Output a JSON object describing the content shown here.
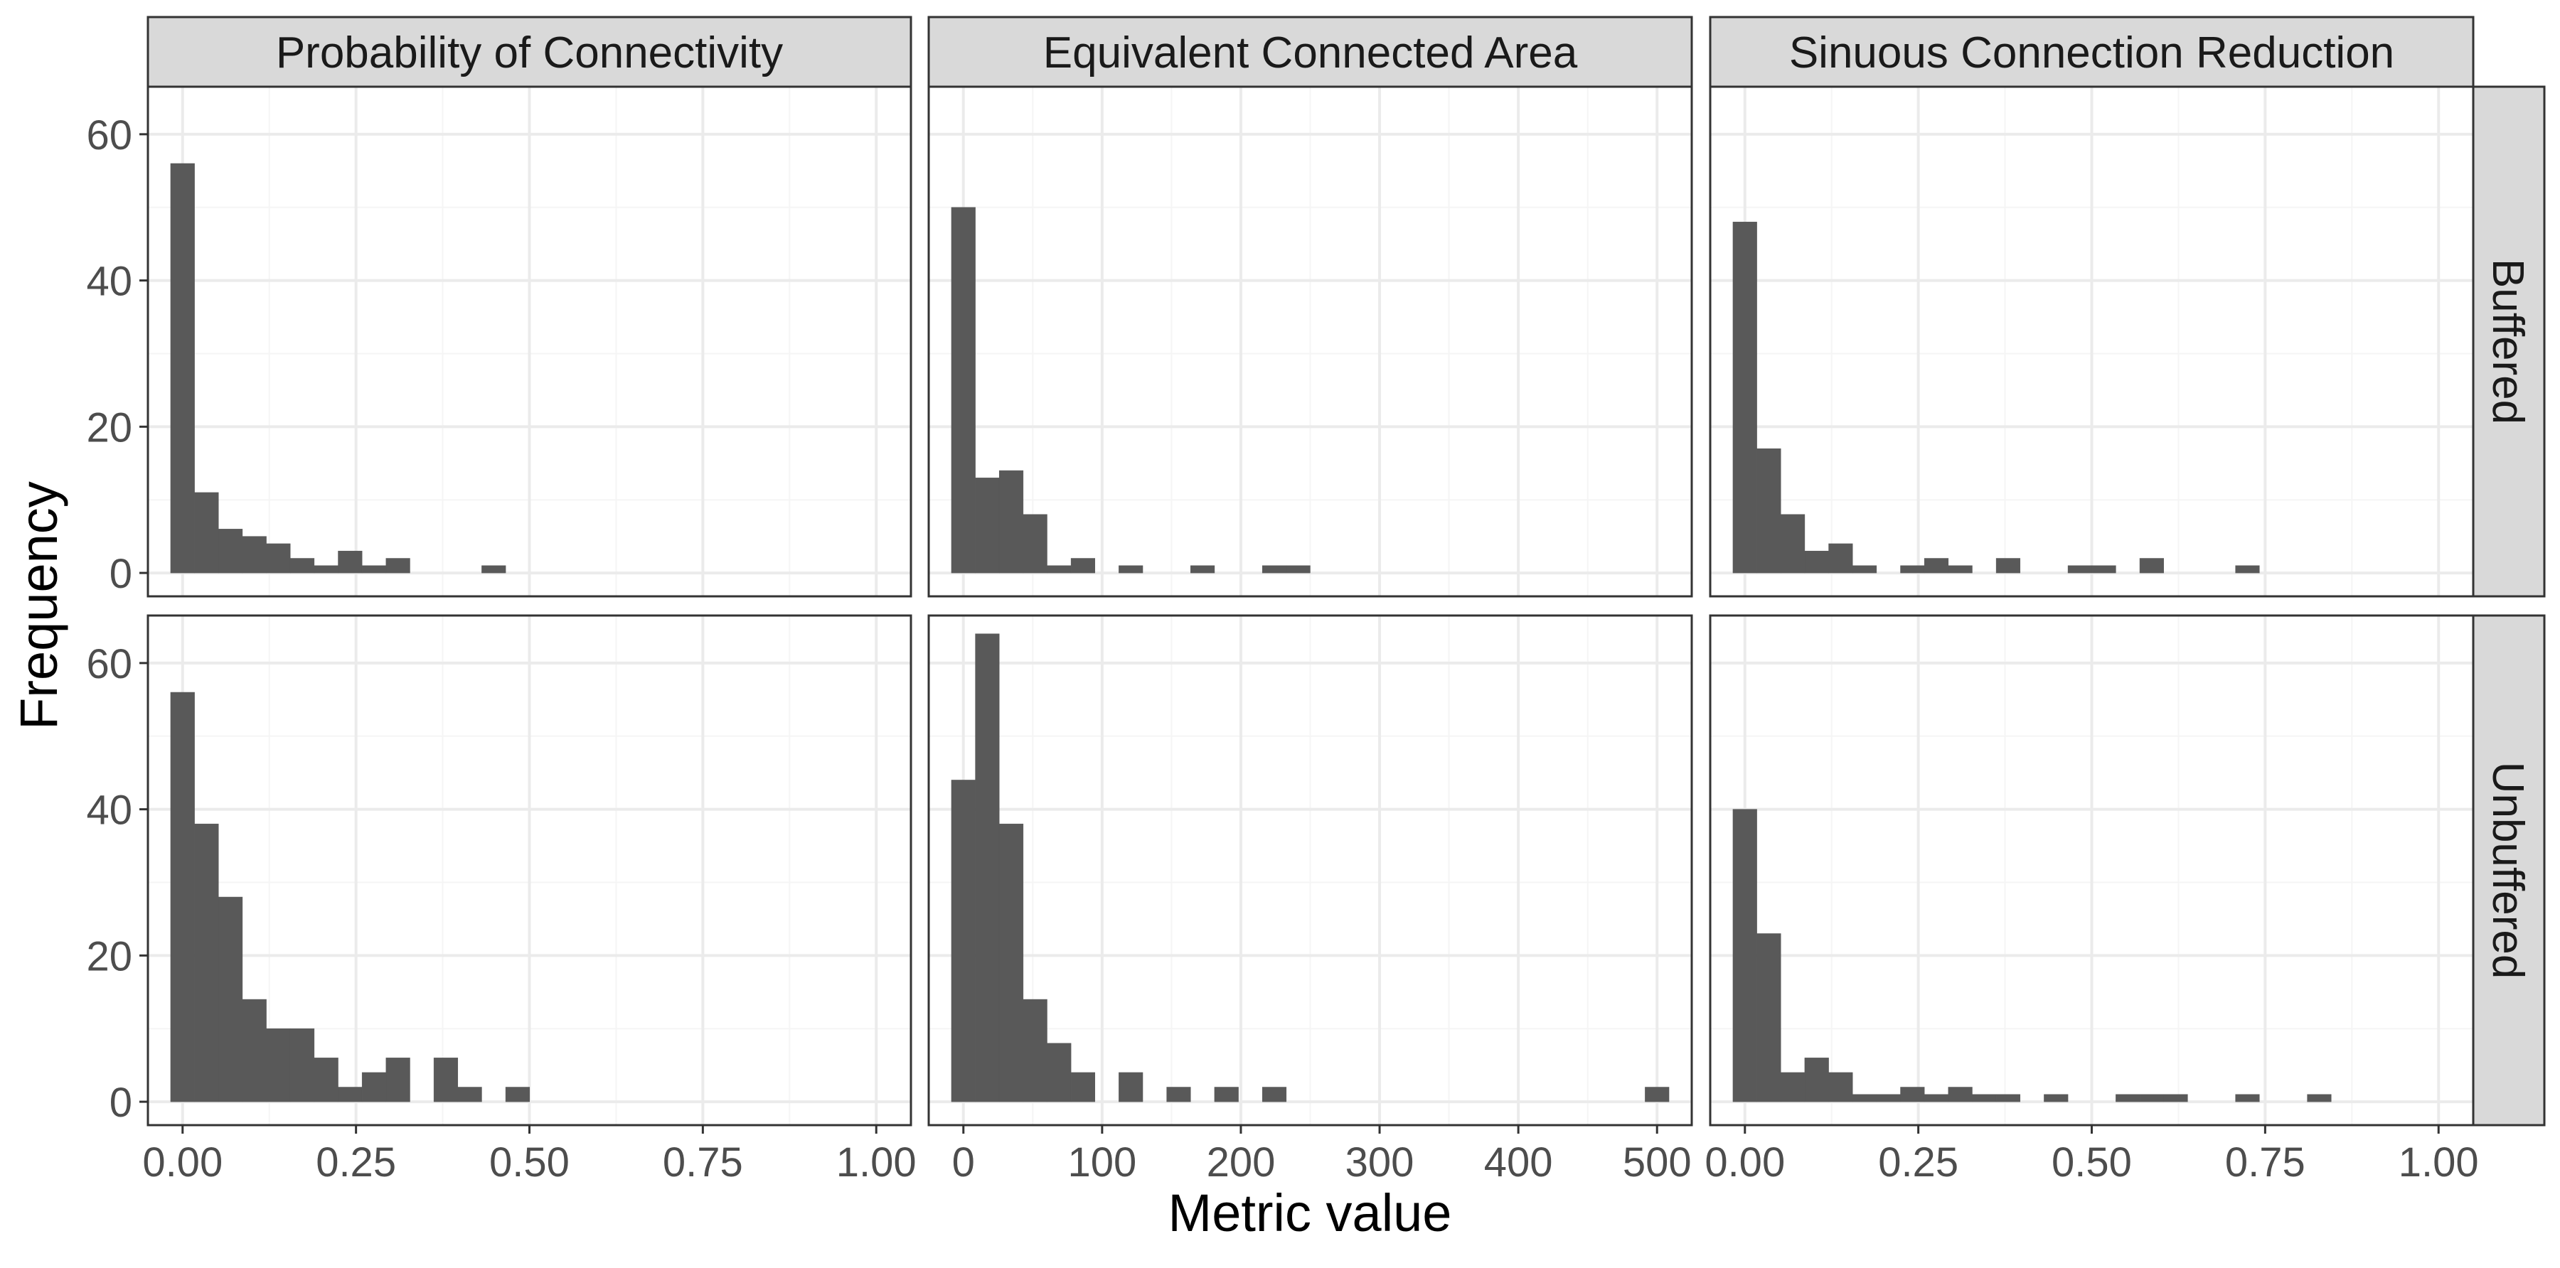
{
  "chart_data": {
    "type": "bar",
    "subtype": "faceted-histogram",
    "xlabel": "Metric value",
    "ylabel": "Frequency",
    "columns": [
      "Probability of Connectivity",
      "Equivalent Connected Area",
      "Sinuous Connection Reduction"
    ],
    "rows": [
      "Buffered",
      "Unbuffered"
    ],
    "ylim": [
      -3.2,
      66.5
    ],
    "yticks": [
      0,
      20,
      40,
      60
    ],
    "grid": true,
    "colors": {
      "bar": "#595959",
      "strip_bg": "#d9d9d9",
      "panel_border": "#333333",
      "grid_major": "#ebebeb",
      "grid_minor": "#f5f5f5",
      "tick_label": "#4d4d4d",
      "title_text": "#000000"
    },
    "x_axes": [
      {
        "xlim": [
          -0.05,
          1.05
        ],
        "ticks": [
          0,
          0.25,
          0.5,
          0.75,
          1
        ],
        "tick_labels": [
          "0.00",
          "0.25",
          "0.50",
          "0.75",
          "1.00"
        ]
      },
      {
        "xlim": [
          -25,
          525
        ],
        "ticks": [
          0,
          100,
          200,
          300,
          400,
          500
        ],
        "tick_labels": [
          "0",
          "100",
          "200",
          "300",
          "400",
          "500"
        ]
      },
      {
        "xlim": [
          -0.05,
          1.05
        ],
        "ticks": [
          0,
          0.25,
          0.5,
          0.75,
          1
        ],
        "tick_labels": [
          "0.00",
          "0.25",
          "0.50",
          "0.75",
          "1.00"
        ]
      }
    ],
    "panels": [
      {
        "column": "Probability of Connectivity",
        "row": "Buffered",
        "bin_width": 0.0345,
        "bin_centers": [
          0,
          0.0345,
          0.069,
          0.1035,
          0.138,
          0.1725,
          0.207,
          0.2415,
          0.276,
          0.3105,
          0.4485
        ],
        "counts": [
          56,
          11,
          6,
          5,
          4,
          2,
          1,
          3,
          1,
          2,
          1
        ]
      },
      {
        "column": "Equivalent Connected Area",
        "row": "Buffered",
        "bin_width": 17.24,
        "bin_centers": [
          0,
          17.24,
          34.48,
          51.72,
          68.96,
          86.2,
          120.68,
          172.4,
          224.12,
          241.36
        ],
        "counts": [
          50,
          13,
          14,
          8,
          1,
          2,
          1,
          1,
          1,
          1
        ]
      },
      {
        "column": "Sinuous Connection Reduction",
        "row": "Buffered",
        "bin_width": 0.0345,
        "bin_centers": [
          0,
          0.0345,
          0.069,
          0.1035,
          0.138,
          0.1725,
          0.2415,
          0.276,
          0.3105,
          0.3795,
          0.483,
          0.5175,
          0.5865,
          0.7245
        ],
        "counts": [
          48,
          17,
          8,
          3,
          4,
          1,
          1,
          2,
          1,
          2,
          1,
          1,
          2,
          1
        ]
      },
      {
        "column": "Probability of Connectivity",
        "row": "Unbuffered",
        "bin_width": 0.0345,
        "bin_centers": [
          0,
          0.0345,
          0.069,
          0.1035,
          0.138,
          0.1725,
          0.207,
          0.2415,
          0.276,
          0.3105,
          0.3795,
          0.414,
          0.483
        ],
        "counts": [
          56,
          38,
          28,
          14,
          10,
          10,
          6,
          2,
          4,
          6,
          6,
          2,
          2
        ]
      },
      {
        "column": "Equivalent Connected Area",
        "row": "Unbuffered",
        "bin_width": 17.24,
        "bin_centers": [
          0,
          17.24,
          34.48,
          51.72,
          68.96,
          86.2,
          120.68,
          155.16,
          189.64,
          224.12,
          500
        ],
        "counts": [
          44,
          64,
          38,
          14,
          8,
          4,
          4,
          2,
          2,
          2,
          2
        ]
      },
      {
        "column": "Sinuous Connection Reduction",
        "row": "Unbuffered",
        "bin_width": 0.0345,
        "bin_centers": [
          0,
          0.0345,
          0.069,
          0.1035,
          0.138,
          0.1725,
          0.207,
          0.2415,
          0.276,
          0.3105,
          0.345,
          0.3795,
          0.4485,
          0.552,
          0.5865,
          0.621,
          0.7245,
          0.828
        ],
        "counts": [
          40,
          23,
          4,
          6,
          4,
          1,
          1,
          2,
          1,
          2,
          1,
          1,
          1,
          1,
          1,
          1,
          1,
          1
        ]
      }
    ]
  }
}
